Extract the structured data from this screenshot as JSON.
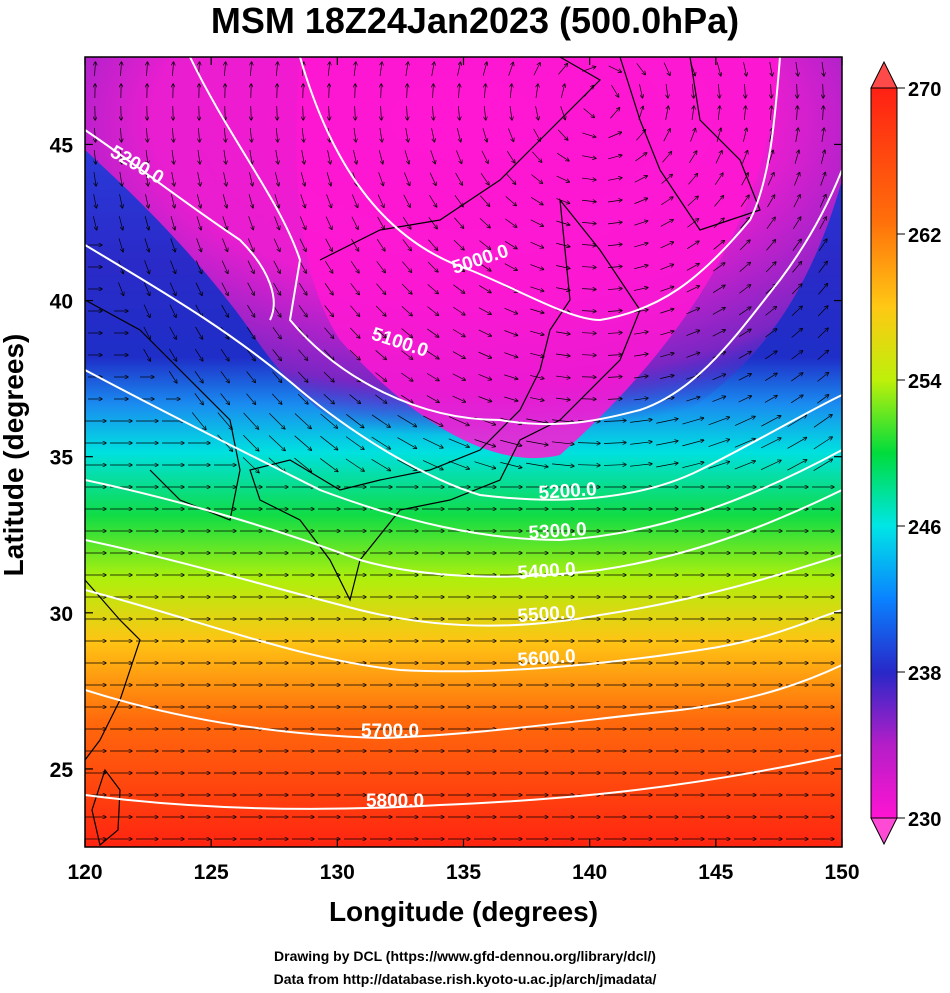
{
  "title": "MSM 18Z24Jan2023 (500.0hPa)",
  "x_axis": {
    "label": "Longitude (degrees)",
    "min": 120,
    "max": 150,
    "ticks": [
      "120",
      "125",
      "130",
      "135",
      "140",
      "145",
      "150"
    ]
  },
  "y_axis": {
    "label": "Latitude  (degrees)",
    "min": 22.5,
    "max": 47.8,
    "ticks": [
      "25",
      "30",
      "35",
      "40",
      "45"
    ]
  },
  "colorbar": {
    "min": 230,
    "max": 270,
    "labels": [
      "230",
      "238",
      "246",
      "254",
      "262",
      "270"
    ],
    "colors": [
      "#ff14d2",
      "#b41ec8",
      "#2828c8",
      "#0a82ff",
      "#00e6e6",
      "#00dc3c",
      "#bef00a",
      "#ffc814",
      "#ff6e0a",
      "#ff2014"
    ]
  },
  "contours": [
    {
      "label": "5000.0"
    },
    {
      "label": "5100.0"
    },
    {
      "label": "5200.0"
    },
    {
      "label": "5200.0"
    },
    {
      "label": "5300.0"
    },
    {
      "label": "5400.0"
    },
    {
      "label": "5500.0"
    },
    {
      "label": "5600.0"
    },
    {
      "label": "5700.0"
    },
    {
      "label": "5800.0"
    }
  ],
  "credits": {
    "line1": "Drawing by DCL (https://www.gfd-dennou.org/library/dcl/)",
    "line2": "Data from http://database.rish.kyoto-u.ac.jp/arch/jmadata/"
  }
}
